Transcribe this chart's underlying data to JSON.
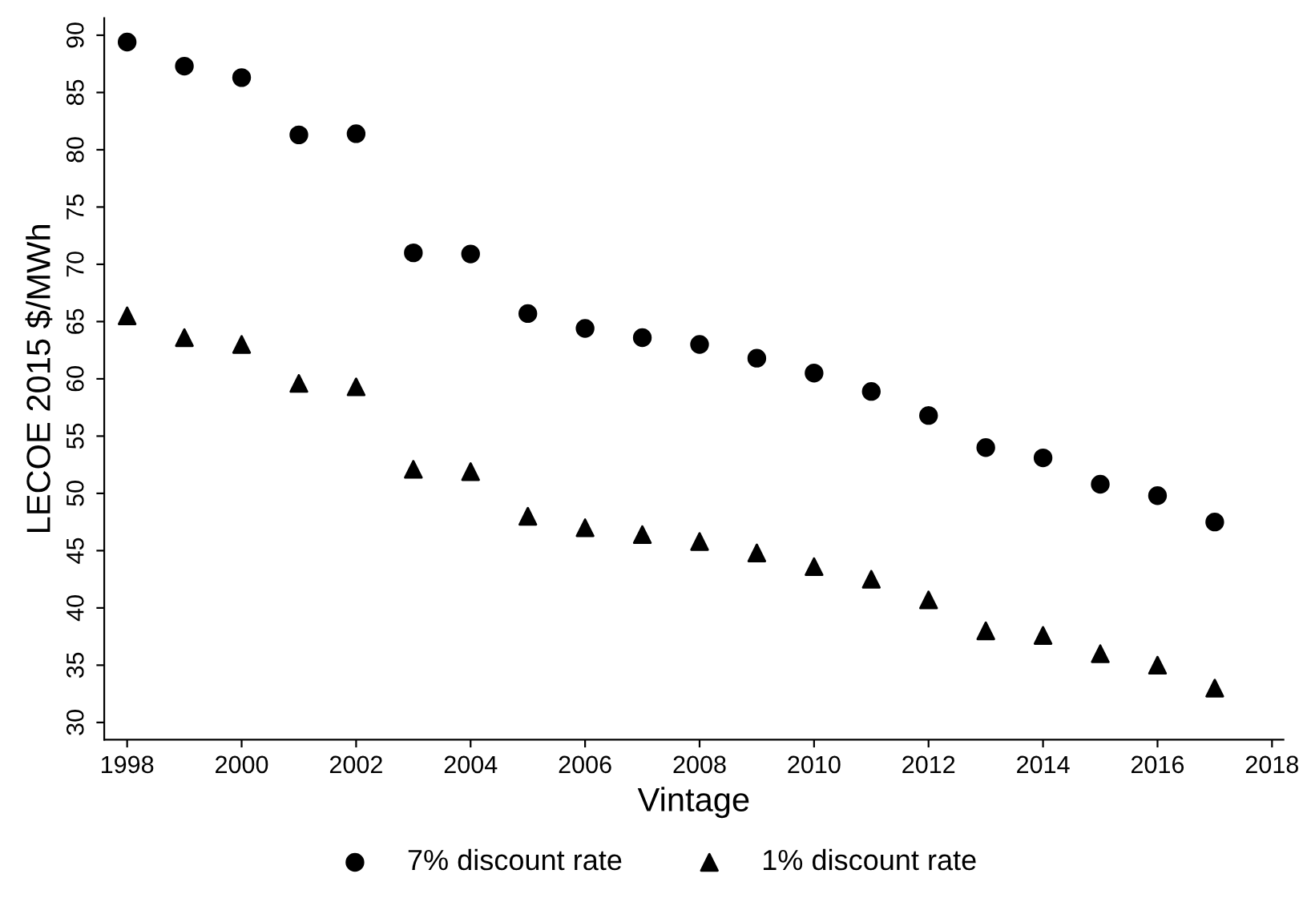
{
  "chart_data": {
    "type": "scatter",
    "xlabel": "Vintage",
    "ylabel": "LECOE 2015 $/MWh",
    "x": [
      1998,
      1999,
      2000,
      2001,
      2002,
      2003,
      2004,
      2005,
      2006,
      2007,
      2008,
      2009,
      2010,
      2011,
      2012,
      2013,
      2014,
      2015,
      2016,
      2017
    ],
    "series": [
      {
        "name": "7% discount rate",
        "color": "#000000",
        "marker": "circle",
        "values": [
          89.4,
          87.3,
          86.3,
          81.3,
          81.4,
          71.0,
          70.9,
          65.7,
          64.4,
          63.6,
          63.0,
          61.8,
          60.5,
          58.9,
          56.8,
          54.0,
          53.1,
          50.8,
          49.8,
          47.5
        ]
      },
      {
        "name": "1% discount rate",
        "color": "#000000",
        "marker": "triangle",
        "values": [
          65.5,
          63.6,
          63.0,
          59.6,
          59.3,
          52.1,
          51.9,
          48.0,
          47.0,
          46.4,
          45.8,
          44.8,
          43.6,
          42.5,
          40.7,
          38.0,
          37.6,
          36.0,
          35.0,
          33.0
        ]
      }
    ],
    "xlim": [
      1997.6,
      2018.2
    ],
    "xticks": [
      1998,
      2000,
      2002,
      2004,
      2006,
      2008,
      2010,
      2012,
      2014,
      2016,
      2018
    ],
    "ylim": [
      28.5,
      91.5
    ],
    "yticks": [
      30,
      35,
      40,
      45,
      50,
      55,
      60,
      65,
      70,
      75,
      80,
      85,
      90
    ],
    "grid": false,
    "legend": "bottom"
  }
}
